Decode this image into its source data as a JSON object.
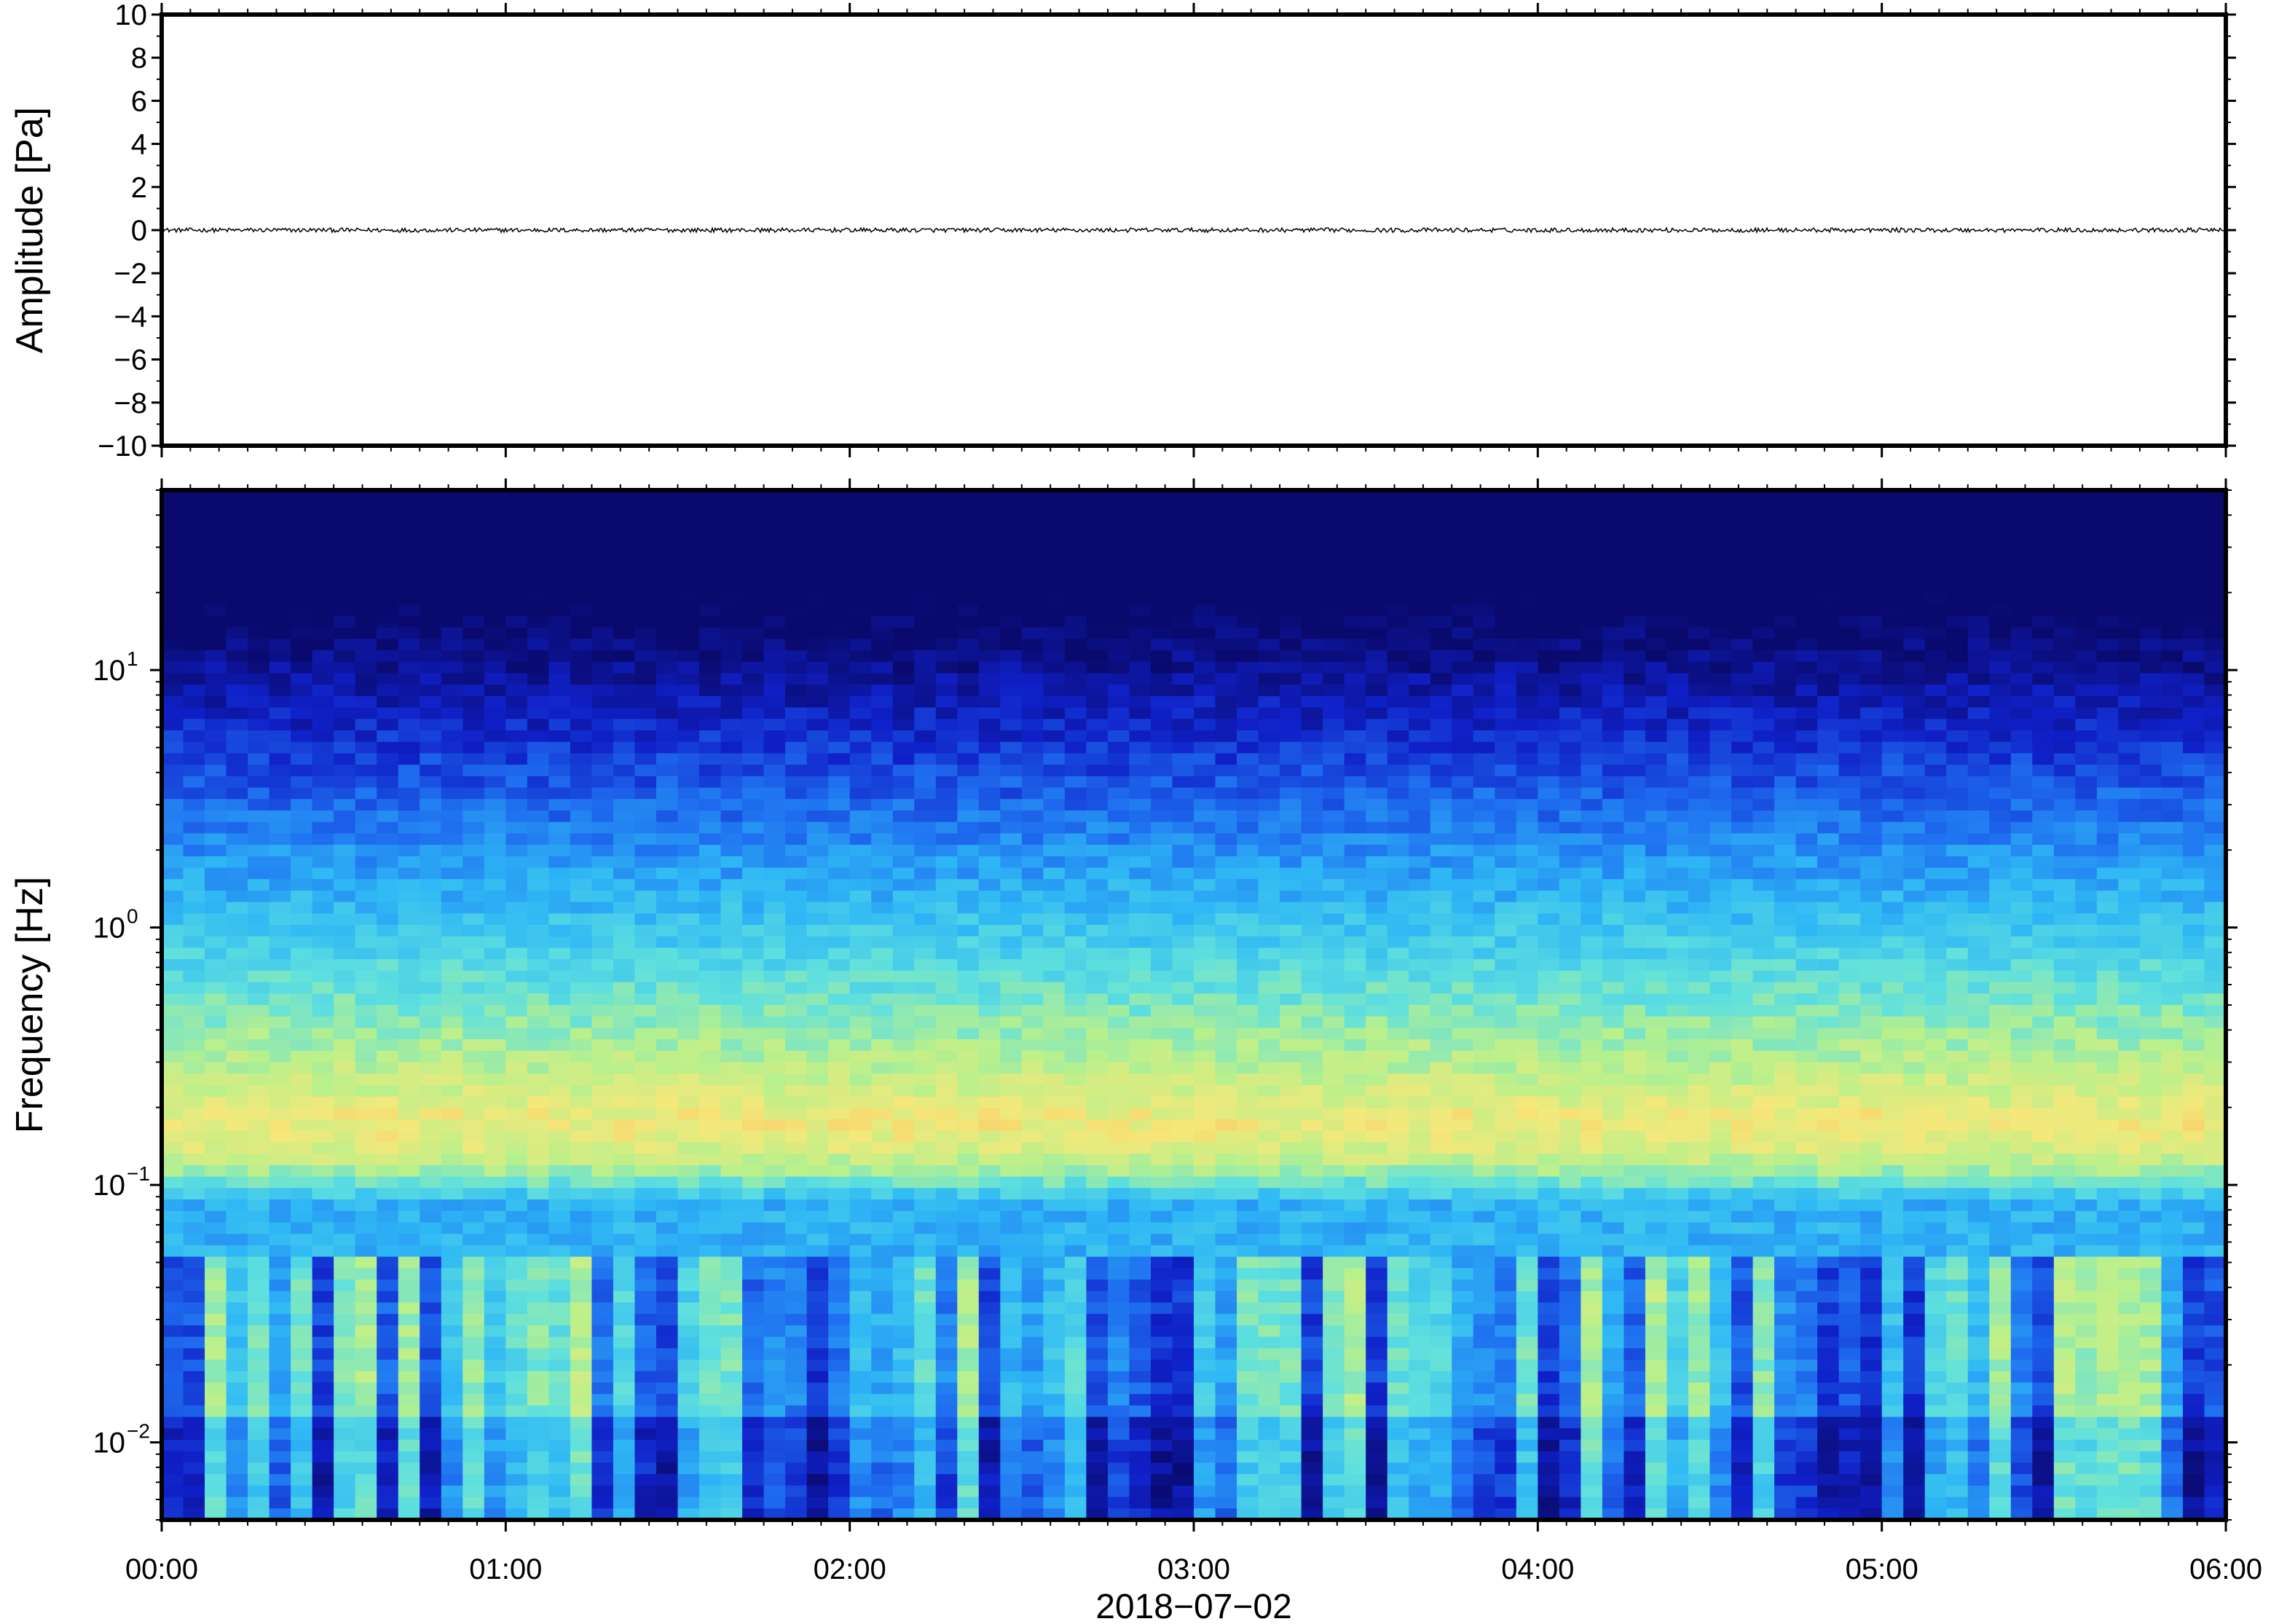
{
  "chart_data": [
    {
      "type": "line",
      "ylabel": "Amplitude [Pa]",
      "ylim": [
        -10,
        10
      ],
      "yticks": [
        10,
        8,
        6,
        4,
        2,
        0,
        -2,
        -4,
        -6,
        -8,
        -10
      ],
      "ytick_labels": [
        "10",
        "8",
        "6",
        "4",
        "2",
        "0",
        "−2",
        "−4",
        "−6",
        "−8",
        "−10"
      ],
      "xlim_hours": [
        0,
        6
      ],
      "series": [
        {
          "values_summary": "noise trace centred on 0 Pa with peak amplitude about 0.1 Pa",
          "mean": 0,
          "approx_peak": 0.1,
          "color": "#000000"
        }
      ]
    },
    {
      "type": "heatmap",
      "ylabel": "Frequency [Hz]",
      "yscale": "log",
      "ylim": [
        0.005,
        50
      ],
      "yticks": [
        {
          "value": 10,
          "base": "10",
          "exp": "1"
        },
        {
          "value": 1,
          "base": "10",
          "exp": "0"
        },
        {
          "value": 0.1,
          "base": "10",
          "exp": "−1"
        },
        {
          "value": 0.01,
          "base": "10",
          "exp": "−2"
        }
      ],
      "xlabel": "2018−07−02",
      "xticks": [
        "00:00",
        "01:00",
        "02:00",
        "03:00",
        "04:00",
        "05:00",
        "06:00"
      ],
      "xlim_hours": [
        0,
        6
      ],
      "colormap": [
        "#0a0a6e",
        "#1020c8",
        "#1f6ff0",
        "#2fb8f5",
        "#5fe0de",
        "#b8f08c",
        "#f5e87a",
        "#f8a650"
      ],
      "spectral_peak_hz": 0.18,
      "notes": "power is low above 10 Hz, rising towards a band peak near 0.18 Hz, with patchy elevated power between 0.01 and 0.05 Hz"
    }
  ]
}
